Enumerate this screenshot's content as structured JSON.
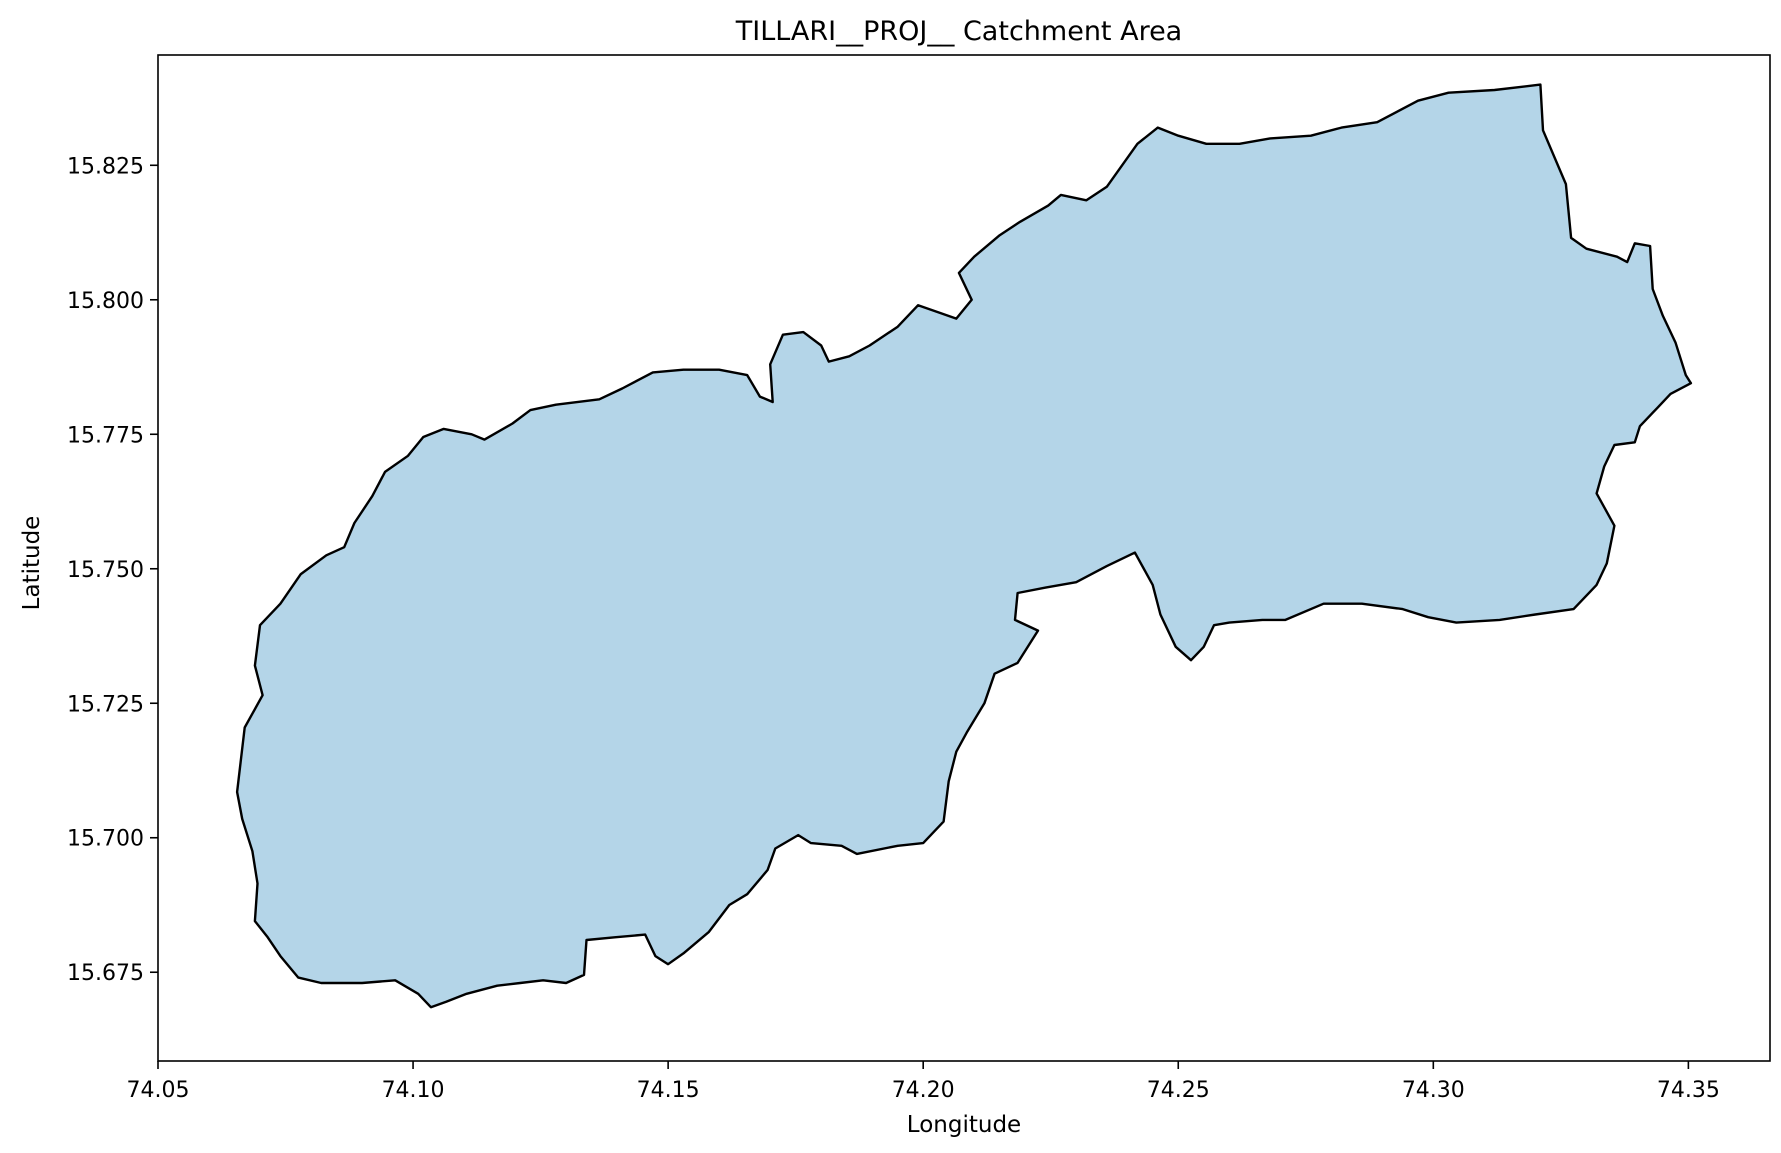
{
  "figure": {
    "title": "TILLARI__PROJ__ Catchment Area",
    "xlabel": "Longitude",
    "ylabel": "Latitude"
  },
  "chart_data": {
    "type": "area",
    "title": "TILLARI__PROJ__ Catchment Area",
    "xlabel": "Longitude",
    "ylabel": "Latitude",
    "xlim": [
      74.05,
      74.366
    ],
    "ylim": [
      15.6585,
      15.8455
    ],
    "xticks": [
      74.05,
      74.1,
      74.15,
      74.2,
      74.25,
      74.3,
      74.35
    ],
    "xtick_labels": [
      "74.05",
      "74.10",
      "74.15",
      "74.20",
      "74.25",
      "74.30",
      "74.35"
    ],
    "yticks": [
      15.675,
      15.7,
      15.725,
      15.75,
      15.775,
      15.8,
      15.825
    ],
    "ytick_labels": [
      "15.675",
      "15.700",
      "15.725",
      "15.750",
      "15.775",
      "15.800",
      "15.825"
    ],
    "grid": false,
    "fill_color": "#b4d5e8",
    "edge_color": "#000000",
    "boundary": [
      [
        74.0655,
        15.7085
      ],
      [
        74.067,
        15.7205
      ],
      [
        74.0705,
        15.7265
      ],
      [
        74.069,
        15.732
      ],
      [
        74.07,
        15.7395
      ],
      [
        74.074,
        15.7435
      ],
      [
        74.078,
        15.749
      ],
      [
        74.083,
        15.7525
      ],
      [
        74.0865,
        15.754
      ],
      [
        74.0885,
        15.7585
      ],
      [
        74.092,
        15.7635
      ],
      [
        74.0945,
        15.768
      ],
      [
        74.099,
        15.771
      ],
      [
        74.102,
        15.7745
      ],
      [
        74.106,
        15.776
      ],
      [
        74.1115,
        15.775
      ],
      [
        74.114,
        15.774
      ],
      [
        74.1195,
        15.777
      ],
      [
        74.123,
        15.7795
      ],
      [
        74.128,
        15.7805
      ],
      [
        74.1365,
        15.7815
      ],
      [
        74.141,
        15.7835
      ],
      [
        74.147,
        15.7865
      ],
      [
        74.153,
        15.787
      ],
      [
        74.16,
        15.787
      ],
      [
        74.1655,
        15.786
      ],
      [
        74.168,
        15.782
      ],
      [
        74.1705,
        15.781
      ],
      [
        74.17,
        15.788
      ],
      [
        74.1725,
        15.7935
      ],
      [
        74.1765,
        15.794
      ],
      [
        74.18,
        15.7915
      ],
      [
        74.1815,
        15.7885
      ],
      [
        74.1855,
        15.7895
      ],
      [
        74.1895,
        15.7915
      ],
      [
        74.195,
        15.795
      ],
      [
        74.199,
        15.799
      ],
      [
        74.2035,
        15.7975
      ],
      [
        74.2065,
        15.7965
      ],
      [
        74.2095,
        15.8
      ],
      [
        74.207,
        15.805
      ],
      [
        74.21,
        15.808
      ],
      [
        74.215,
        15.812
      ],
      [
        74.219,
        15.8145
      ],
      [
        74.2245,
        15.8175
      ],
      [
        74.227,
        15.8195
      ],
      [
        74.232,
        15.8185
      ],
      [
        74.236,
        15.821
      ],
      [
        74.242,
        15.829
      ],
      [
        74.246,
        15.832
      ],
      [
        74.25,
        15.8305
      ],
      [
        74.2555,
        15.829
      ],
      [
        74.262,
        15.829
      ],
      [
        74.268,
        15.83
      ],
      [
        74.276,
        15.8305
      ],
      [
        74.282,
        15.832
      ],
      [
        74.289,
        15.833
      ],
      [
        74.297,
        15.837
      ],
      [
        74.303,
        15.8385
      ],
      [
        74.312,
        15.839
      ],
      [
        74.321,
        15.84
      ],
      [
        74.3215,
        15.8315
      ],
      [
        74.326,
        15.8215
      ],
      [
        74.3265,
        15.8165
      ],
      [
        74.327,
        15.8115
      ],
      [
        74.33,
        15.8095
      ],
      [
        74.336,
        15.808
      ],
      [
        74.338,
        15.807
      ],
      [
        74.3395,
        15.8105
      ],
      [
        74.3425,
        15.81
      ],
      [
        74.343,
        15.802
      ],
      [
        74.345,
        15.797
      ],
      [
        74.3475,
        15.792
      ],
      [
        74.3495,
        15.786
      ],
      [
        74.3505,
        15.7845
      ],
      [
        74.3465,
        15.7825
      ],
      [
        74.344,
        15.78
      ],
      [
        74.3405,
        15.7765
      ],
      [
        74.3395,
        15.7735
      ],
      [
        74.3355,
        15.773
      ],
      [
        74.3335,
        15.769
      ],
      [
        74.332,
        15.764
      ],
      [
        74.3355,
        15.758
      ],
      [
        74.334,
        15.751
      ],
      [
        74.332,
        15.747
      ],
      [
        74.3275,
        15.7425
      ],
      [
        74.32,
        15.7415
      ],
      [
        74.313,
        15.7405
      ],
      [
        74.3045,
        15.74
      ],
      [
        74.299,
        15.741
      ],
      [
        74.294,
        15.7425
      ],
      [
        74.286,
        15.7435
      ],
      [
        74.2785,
        15.7435
      ],
      [
        74.271,
        15.7405
      ],
      [
        74.2665,
        15.7405
      ],
      [
        74.26,
        15.74
      ],
      [
        74.257,
        15.7395
      ],
      [
        74.255,
        15.7355
      ],
      [
        74.2525,
        15.733
      ],
      [
        74.2495,
        15.7355
      ],
      [
        74.2465,
        15.7415
      ],
      [
        74.245,
        15.747
      ],
      [
        74.2415,
        15.753
      ],
      [
        74.236,
        15.7505
      ],
      [
        74.23,
        15.7475
      ],
      [
        74.224,
        15.7465
      ],
      [
        74.2185,
        15.7455
      ],
      [
        74.218,
        15.7405
      ],
      [
        74.2225,
        15.7385
      ],
      [
        74.2185,
        15.7325
      ],
      [
        74.214,
        15.7305
      ],
      [
        74.212,
        15.725
      ],
      [
        74.2085,
        15.7195
      ],
      [
        74.2065,
        15.716
      ],
      [
        74.205,
        15.7105
      ],
      [
        74.204,
        15.703
      ],
      [
        74.2,
        15.699
      ],
      [
        74.195,
        15.6985
      ],
      [
        74.187,
        15.697
      ],
      [
        74.184,
        15.6985
      ],
      [
        74.178,
        15.699
      ],
      [
        74.1755,
        15.7005
      ],
      [
        74.171,
        15.698
      ],
      [
        74.1695,
        15.694
      ],
      [
        74.1655,
        15.6895
      ],
      [
        74.162,
        15.6875
      ],
      [
        74.158,
        15.6825
      ],
      [
        74.153,
        15.6785
      ],
      [
        74.15,
        15.6765
      ],
      [
        74.1475,
        15.678
      ],
      [
        74.1455,
        15.682
      ],
      [
        74.1395,
        15.6815
      ],
      [
        74.134,
        15.681
      ],
      [
        74.1335,
        15.6745
      ],
      [
        74.13,
        15.673
      ],
      [
        74.1255,
        15.6735
      ],
      [
        74.121,
        15.673
      ],
      [
        74.1165,
        15.6725
      ],
      [
        74.1105,
        15.671
      ],
      [
        74.1065,
        15.6695
      ],
      [
        74.1035,
        15.6685
      ],
      [
        74.101,
        15.671
      ],
      [
        74.0965,
        15.6735
      ],
      [
        74.09,
        15.673
      ],
      [
        74.082,
        15.673
      ],
      [
        74.0775,
        15.674
      ],
      [
        74.074,
        15.678
      ],
      [
        74.0715,
        15.6815
      ],
      [
        74.069,
        15.6845
      ],
      [
        74.0695,
        15.6915
      ],
      [
        74.0685,
        15.6975
      ],
      [
        74.0665,
        15.7035
      ]
    ]
  }
}
